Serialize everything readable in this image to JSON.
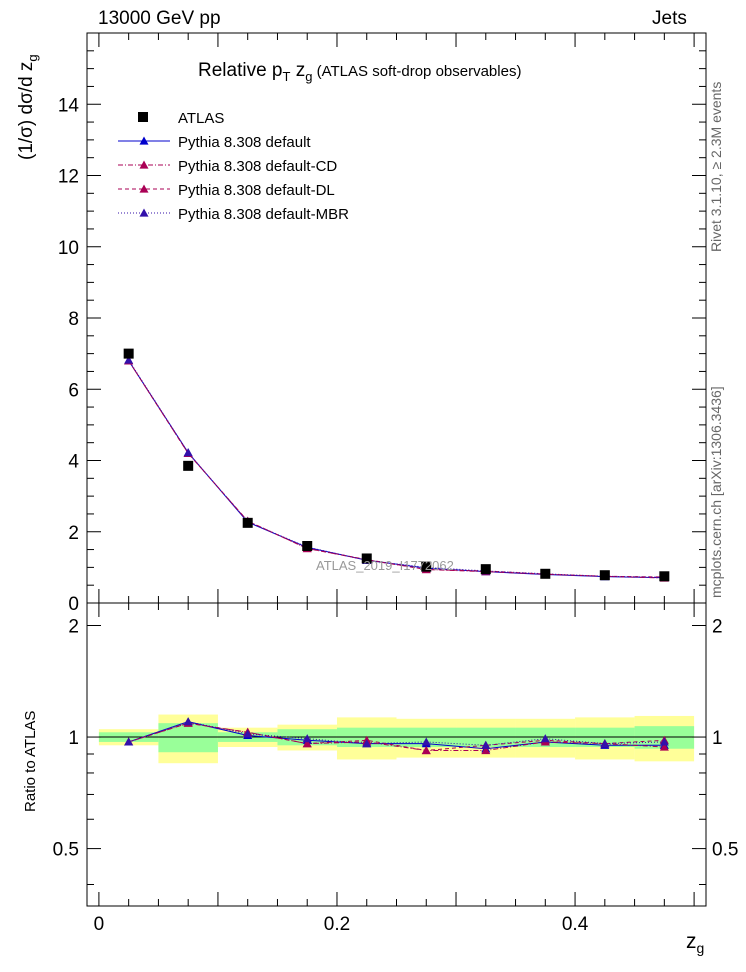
{
  "header": {
    "energy": "13000 GeV pp",
    "process": "Jets",
    "title_main": "Relative p",
    "title_sub_T": "T",
    "title_z": " z",
    "title_sub_g": "g",
    "title_rest": " (ATLAS soft-drop observables)"
  },
  "side": {
    "rivet": "Rivet 3.1.10, ≥ 2.3M events",
    "mcplots": "mcplots.cern.ch [arXiv:1306.3436]"
  },
  "watermark": "ATLAS_2019_I1772062",
  "axes": {
    "ylabel_top": "(1/σ) dσ/d z",
    "ylabel_top_sub": "g",
    "ylabel_ratio": "Ratio to ATLAS",
    "xlabel": "z",
    "xlabel_sub": "g"
  },
  "colors": {
    "atlas": "#000000",
    "default": "#0000cc",
    "cd": "#aa0055",
    "dl": "#aa0055",
    "mbr": "#3311aa",
    "band_inner": "#99ff99",
    "band_outer": "#ffff99"
  },
  "legend": [
    {
      "name": "ATLAS",
      "marker": "square"
    },
    {
      "name": "Pythia 8.308 default",
      "marker": "triangle"
    },
    {
      "name": "Pythia 8.308 default-CD",
      "marker": "triangle"
    },
    {
      "name": "Pythia 8.308 default-DL",
      "marker": "triangle"
    },
    {
      "name": "Pythia 8.308 default-MBR",
      "marker": "triangle"
    }
  ],
  "chart_data": {
    "type": "line",
    "x": [
      0.025,
      0.075,
      0.125,
      0.175,
      0.225,
      0.275,
      0.325,
      0.375,
      0.425,
      0.475
    ],
    "bin_edges": [
      0.0,
      0.05,
      0.1,
      0.15,
      0.2,
      0.25,
      0.3,
      0.35,
      0.4,
      0.45,
      0.5
    ],
    "xlim": [
      -0.01,
      0.51
    ],
    "ylim": [
      0,
      16
    ],
    "ratio_ylim": [
      0.35,
      2.3
    ],
    "xticks": [
      0,
      0.2,
      0.4
    ],
    "xtick_labels": [
      "0",
      "0.2",
      "0.4"
    ],
    "yticks": [
      0,
      2,
      4,
      6,
      8,
      10,
      12,
      14
    ],
    "ytick_labels": [
      "0",
      "2",
      "4",
      "6",
      "8",
      "10",
      "12",
      "14"
    ],
    "ratio_yticks": [
      0.5,
      1,
      2
    ],
    "ratio_ytick_labels": [
      "0.5",
      "1",
      "2"
    ],
    "grid": false,
    "legend_position": "top-left",
    "data": {
      "name": "ATLAS",
      "values": [
        7.0,
        3.85,
        2.25,
        1.6,
        1.25,
        1.02,
        0.95,
        0.82,
        0.78,
        0.75
      ]
    },
    "series": [
      {
        "name": "Pythia 8.308 default",
        "values": [
          6.8,
          4.22,
          2.27,
          1.56,
          1.2,
          0.98,
          0.88,
          0.8,
          0.74,
          0.71
        ],
        "ratio": [
          0.97,
          1.1,
          1.01,
          0.98,
          0.96,
          0.96,
          0.93,
          0.97,
          0.95,
          0.95
        ]
      },
      {
        "name": "Pythia 8.308 default-CD",
        "values": [
          6.8,
          4.2,
          2.3,
          1.53,
          1.21,
          0.94,
          0.88,
          0.81,
          0.75,
          0.7
        ],
        "ratio": [
          0.97,
          1.09,
          1.03,
          0.96,
          0.97,
          0.92,
          0.92,
          0.97,
          0.96,
          0.94
        ]
      },
      {
        "name": "Pythia 8.308 default-DL",
        "values": [
          6.8,
          4.2,
          2.3,
          1.53,
          1.22,
          0.94,
          0.9,
          0.81,
          0.75,
          0.73
        ],
        "ratio": [
          0.97,
          1.09,
          1.03,
          0.96,
          0.98,
          0.92,
          0.95,
          0.98,
          0.96,
          0.98
        ]
      },
      {
        "name": "Pythia 8.308 default-MBR",
        "values": [
          6.82,
          4.22,
          2.28,
          1.57,
          1.2,
          1.0,
          0.9,
          0.82,
          0.75,
          0.72
        ],
        "ratio": [
          0.97,
          1.1,
          1.02,
          0.99,
          0.96,
          0.97,
          0.95,
          0.99,
          0.96,
          0.97
        ]
      }
    ],
    "band_inner": [
      [
        0.97,
        1.03
      ],
      [
        0.91,
        1.09
      ],
      [
        0.97,
        1.03
      ],
      [
        0.95,
        1.05
      ],
      [
        0.94,
        1.06
      ],
      [
        0.94,
        1.06
      ],
      [
        0.94,
        1.06
      ],
      [
        0.94,
        1.06
      ],
      [
        0.94,
        1.06
      ],
      [
        0.93,
        1.07
      ]
    ],
    "band_outer": [
      [
        0.95,
        1.05
      ],
      [
        0.85,
        1.15
      ],
      [
        0.94,
        1.06
      ],
      [
        0.92,
        1.08
      ],
      [
        0.87,
        1.13
      ],
      [
        0.88,
        1.12
      ],
      [
        0.88,
        1.12
      ],
      [
        0.88,
        1.12
      ],
      [
        0.87,
        1.13
      ],
      [
        0.86,
        1.14
      ]
    ]
  }
}
